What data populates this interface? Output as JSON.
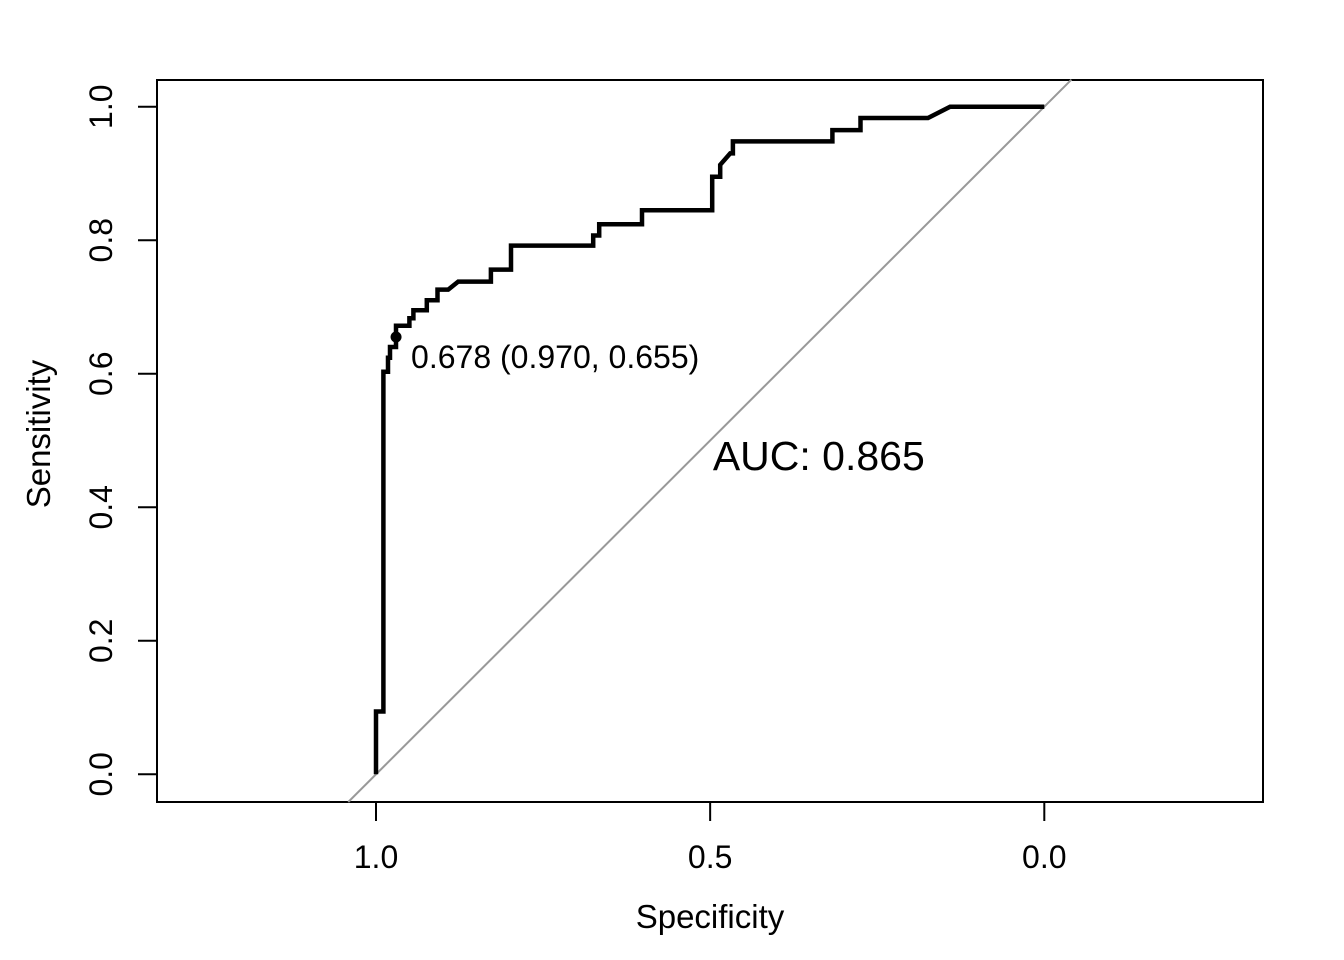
{
  "chart_data": {
    "type": "line",
    "subtype": "roc-curve",
    "title": "",
    "xlabel": "Specificity",
    "ylabel": "Sensitivity",
    "x_axis_reversed": true,
    "xlim": [
      1.0,
      0.0
    ],
    "ylim": [
      0.0,
      1.0
    ],
    "x_ticks": [
      {
        "value": 1.0,
        "label": "1.0"
      },
      {
        "value": 0.5,
        "label": "0.5"
      },
      {
        "value": 0.0,
        "label": "0.0"
      }
    ],
    "y_ticks": [
      {
        "value": 0.0,
        "label": "0.0"
      },
      {
        "value": 0.2,
        "label": "0.2"
      },
      {
        "value": 0.4,
        "label": "0.4"
      },
      {
        "value": 0.6,
        "label": "0.6"
      },
      {
        "value": 0.8,
        "label": "0.8"
      },
      {
        "value": 1.0,
        "label": "1.0"
      }
    ],
    "grid": false,
    "auc": 0.865,
    "auc_label": {
      "text": "AUC: 0.865",
      "x_spec": 0.496,
      "y_sens": 0.456
    },
    "best_threshold": {
      "threshold": 0.678,
      "specificity": 0.97,
      "sensitivity": 0.655,
      "label": "0.678 (0.970, 0.655)"
    },
    "diagonal_line": {
      "from": {
        "spec": 1.0415,
        "sens": -0.0415
      },
      "to": {
        "spec": -0.0405,
        "sens": 1.0405
      }
    },
    "roc_points_spec_sens": [
      [
        1.0,
        0.0
      ],
      [
        1.0,
        0.094
      ],
      [
        0.989,
        0.094
      ],
      [
        0.989,
        0.603
      ],
      [
        0.982,
        0.603
      ],
      [
        0.982,
        0.624
      ],
      [
        0.979,
        0.624
      ],
      [
        0.979,
        0.64
      ],
      [
        0.97,
        0.64
      ],
      [
        0.97,
        0.672
      ],
      [
        0.95,
        0.672
      ],
      [
        0.95,
        0.683
      ],
      [
        0.944,
        0.683
      ],
      [
        0.944,
        0.695
      ],
      [
        0.924,
        0.695
      ],
      [
        0.924,
        0.71
      ],
      [
        0.908,
        0.71
      ],
      [
        0.908,
        0.726
      ],
      [
        0.892,
        0.726
      ],
      [
        0.877,
        0.738
      ],
      [
        0.828,
        0.738
      ],
      [
        0.828,
        0.756
      ],
      [
        0.798,
        0.756
      ],
      [
        0.798,
        0.792
      ],
      [
        0.675,
        0.792
      ],
      [
        0.675,
        0.807
      ],
      [
        0.666,
        0.807
      ],
      [
        0.666,
        0.824
      ],
      [
        0.602,
        0.824
      ],
      [
        0.602,
        0.845
      ],
      [
        0.497,
        0.845
      ],
      [
        0.497,
        0.895
      ],
      [
        0.485,
        0.895
      ],
      [
        0.485,
        0.913
      ],
      [
        0.47,
        0.93
      ],
      [
        0.466,
        0.93
      ],
      [
        0.466,
        0.948
      ],
      [
        0.317,
        0.948
      ],
      [
        0.317,
        0.965
      ],
      [
        0.275,
        0.965
      ],
      [
        0.275,
        0.983
      ],
      [
        0.174,
        0.983
      ],
      [
        0.141,
        1.0
      ],
      [
        0.0,
        1.0
      ]
    ],
    "colors": {
      "curve": "#000000",
      "diagonal": "#999999",
      "text": "#000000",
      "box": "#000000",
      "background": "#ffffff"
    }
  }
}
